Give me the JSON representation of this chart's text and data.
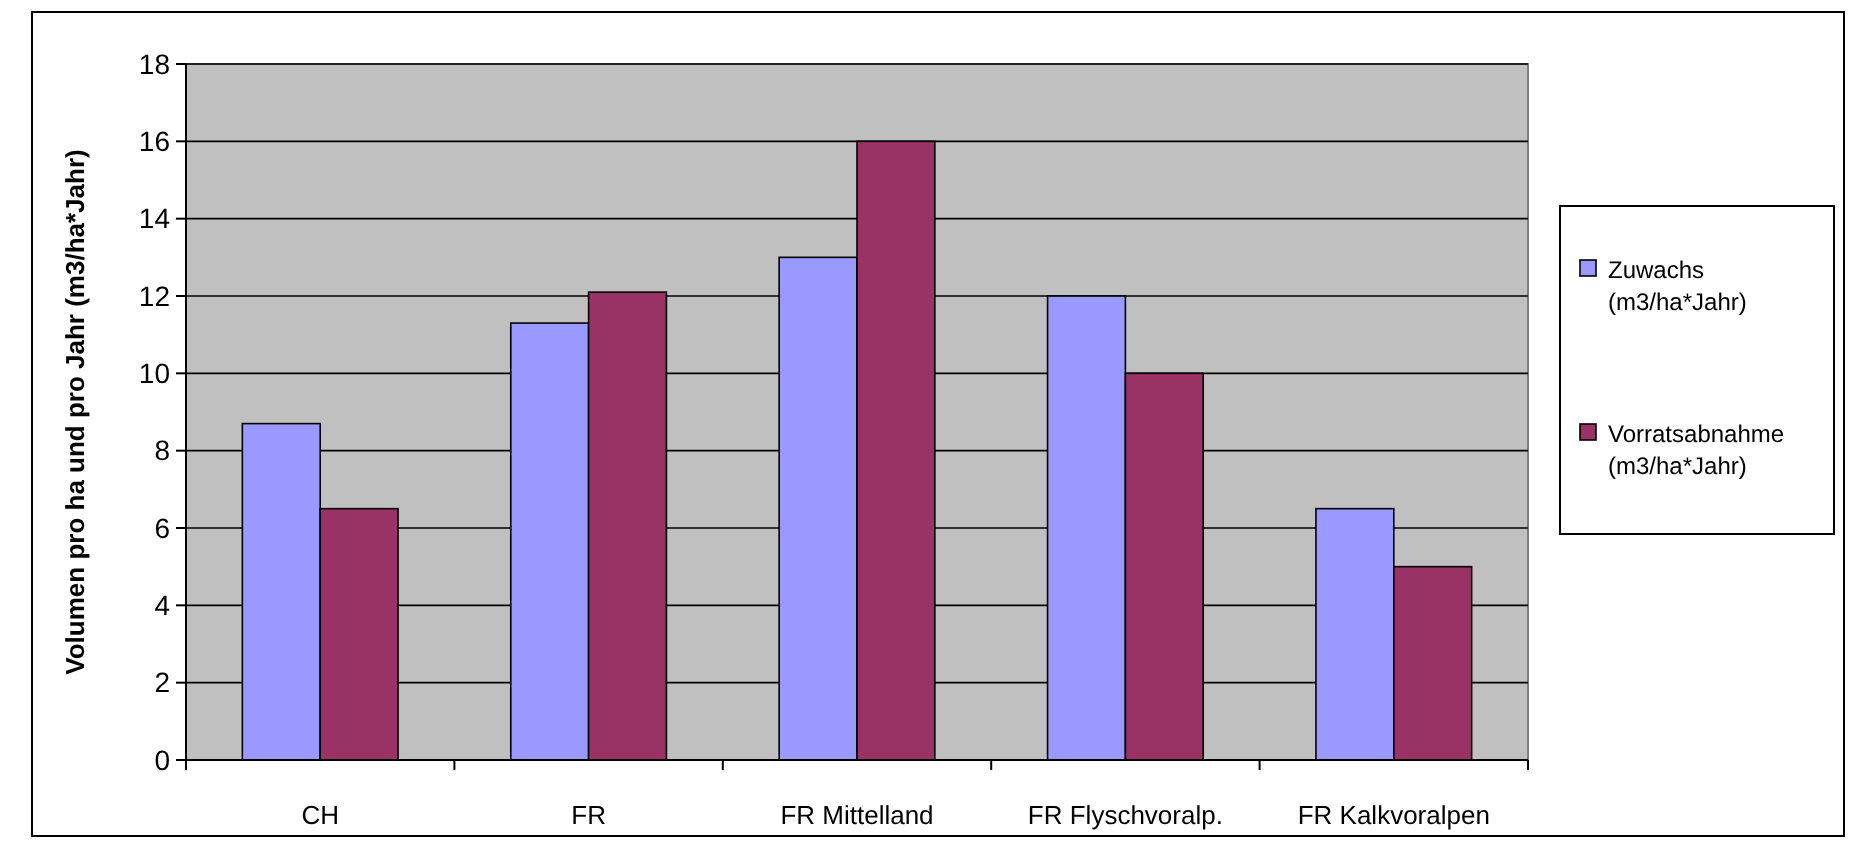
{
  "chart_data": {
    "type": "bar",
    "ylabel": "Volumen pro ha und pro Jahr (m3/ha*Jahr)",
    "categories": [
      "CH",
      "FR",
      "FR Mittelland",
      "FR Flyschvoralp.",
      "FR Kalkvoralpen"
    ],
    "series": [
      {
        "name": "Zuwachs (m3/ha*Jahr)",
        "color": "#9999ff",
        "values": [
          8.7,
          11.3,
          13,
          12,
          6.5
        ]
      },
      {
        "name": "Vorratsabnahme (m3/ha*Jahr)",
        "color": "#993366",
        "values": [
          6.5,
          12.1,
          16,
          10,
          5
        ]
      }
    ],
    "ylim": [
      0,
      18
    ],
    "yticks": [
      0,
      2,
      4,
      6,
      8,
      10,
      12,
      14,
      16,
      18
    ],
    "grid": "y",
    "legend": "right"
  }
}
